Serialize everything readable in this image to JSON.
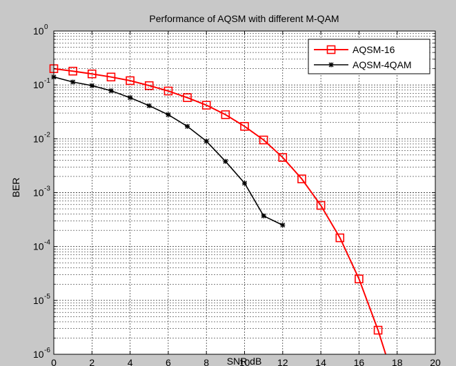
{
  "chart_data": {
    "type": "line",
    "title": "Performance of AQSM with different M-QAM",
    "xlabel": "SNR dB",
    "ylabel": "BER",
    "xlim": [
      0,
      20
    ],
    "ylim": [
      1e-06,
      1
    ],
    "yscale": "log",
    "grid": true,
    "legend_position": "top-right",
    "x_ticks": [
      0,
      2,
      4,
      6,
      8,
      10,
      12,
      14,
      16,
      18,
      20
    ],
    "y_tick_exponents": [
      0,
      -1,
      -2,
      -3,
      -4,
      -5,
      -6
    ],
    "y_tick_base": "10",
    "series": [
      {
        "name": "AQSM-16",
        "color": "#ff0000",
        "marker": "square",
        "x": [
          0,
          1,
          2,
          3,
          4,
          5,
          6,
          7,
          8,
          9,
          10,
          11,
          12,
          13,
          14,
          15,
          16,
          17,
          17.4
        ],
        "y": [
          0.2,
          0.18,
          0.16,
          0.14,
          0.12,
          0.097,
          0.077,
          0.058,
          0.042,
          0.028,
          0.017,
          0.0095,
          0.0045,
          0.0018,
          0.00058,
          0.000145,
          2.5e-05,
          2.8e-06,
          1e-06
        ]
      },
      {
        "name": "AQSM-4QAM",
        "color": "#000000",
        "marker": "x",
        "x": [
          0,
          1,
          2,
          3,
          4,
          5,
          6,
          7,
          8,
          9,
          10,
          11,
          12
        ],
        "y": [
          0.14,
          0.113,
          0.097,
          0.078,
          0.058,
          0.041,
          0.028,
          0.017,
          0.009,
          0.0038,
          0.0015,
          0.00037,
          0.00025
        ]
      }
    ]
  }
}
